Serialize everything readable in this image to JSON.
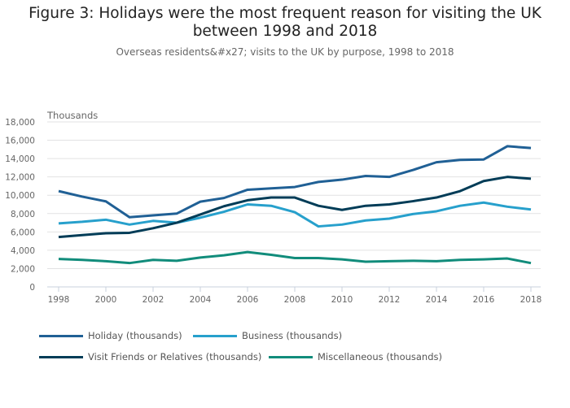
{
  "header": {
    "title": "Figure 3: Holidays were the most frequent reason for visiting the UK between 1998 and 2018",
    "subtitle": "Overseas residents&#x27; visits to the UK by purpose, 1998 to 2018"
  },
  "chart_data": {
    "type": "line",
    "title": "Figure 3: Holidays were the most frequent reason for visiting the UK between 1998 and 2018",
    "subtitle": "Overseas residents&#x27; visits to the UK by purpose, 1998 to 2018",
    "xlabel": "",
    "ylabel": "Thousands",
    "x": [
      1998,
      1999,
      2000,
      2001,
      2002,
      2003,
      2004,
      2005,
      2006,
      2007,
      2008,
      2009,
      2010,
      2011,
      2012,
      2013,
      2014,
      2015,
      2016,
      2017,
      2018
    ],
    "xticks": [
      "1998",
      "2000",
      "2002",
      "2004",
      "2006",
      "2008",
      "2010",
      "2012",
      "2014",
      "2016",
      "2018"
    ],
    "xlim": [
      1998,
      2018
    ],
    "yticks": [
      "0",
      "2,000",
      "4,000",
      "6,000",
      "8,000",
      "10,000",
      "12,000",
      "14,000",
      "16,000",
      "18,000"
    ],
    "ylim": [
      0,
      18000
    ],
    "grid": "horizontal",
    "legend_position": "bottom",
    "series": [
      {
        "name": "Holiday (thousands)",
        "color": "#206095",
        "values": [
          10450,
          9850,
          9330,
          7600,
          7800,
          8000,
          9300,
          9700,
          10600,
          10750,
          10900,
          11450,
          11700,
          12100,
          12000,
          12750,
          13600,
          13850,
          13900,
          15350,
          15150
        ]
      },
      {
        "name": "Business (thousands)",
        "color": "#27a0cc",
        "values": [
          6930,
          7100,
          7330,
          6800,
          7200,
          7000,
          7550,
          8200,
          9000,
          8850,
          8150,
          6600,
          6800,
          7250,
          7450,
          7950,
          8250,
          8850,
          9200,
          8750,
          8450
        ]
      },
      {
        "name": "Visit Friends or Relatives (thousands)",
        "color": "#003c57",
        "values": [
          5440,
          5650,
          5850,
          5900,
          6400,
          7000,
          7900,
          8800,
          9450,
          9750,
          9750,
          8850,
          8400,
          8850,
          9000,
          9350,
          9750,
          10450,
          11550,
          12000,
          11800
        ]
      },
      {
        "name": "Miscellaneous (thousands)",
        "color": "#118c7b",
        "values": [
          3050,
          2950,
          2800,
          2600,
          2950,
          2850,
          3200,
          3450,
          3800,
          3500,
          3150,
          3150,
          3000,
          2750,
          2800,
          2850,
          2800,
          2950,
          3000,
          3100,
          2600
        ]
      }
    ]
  }
}
